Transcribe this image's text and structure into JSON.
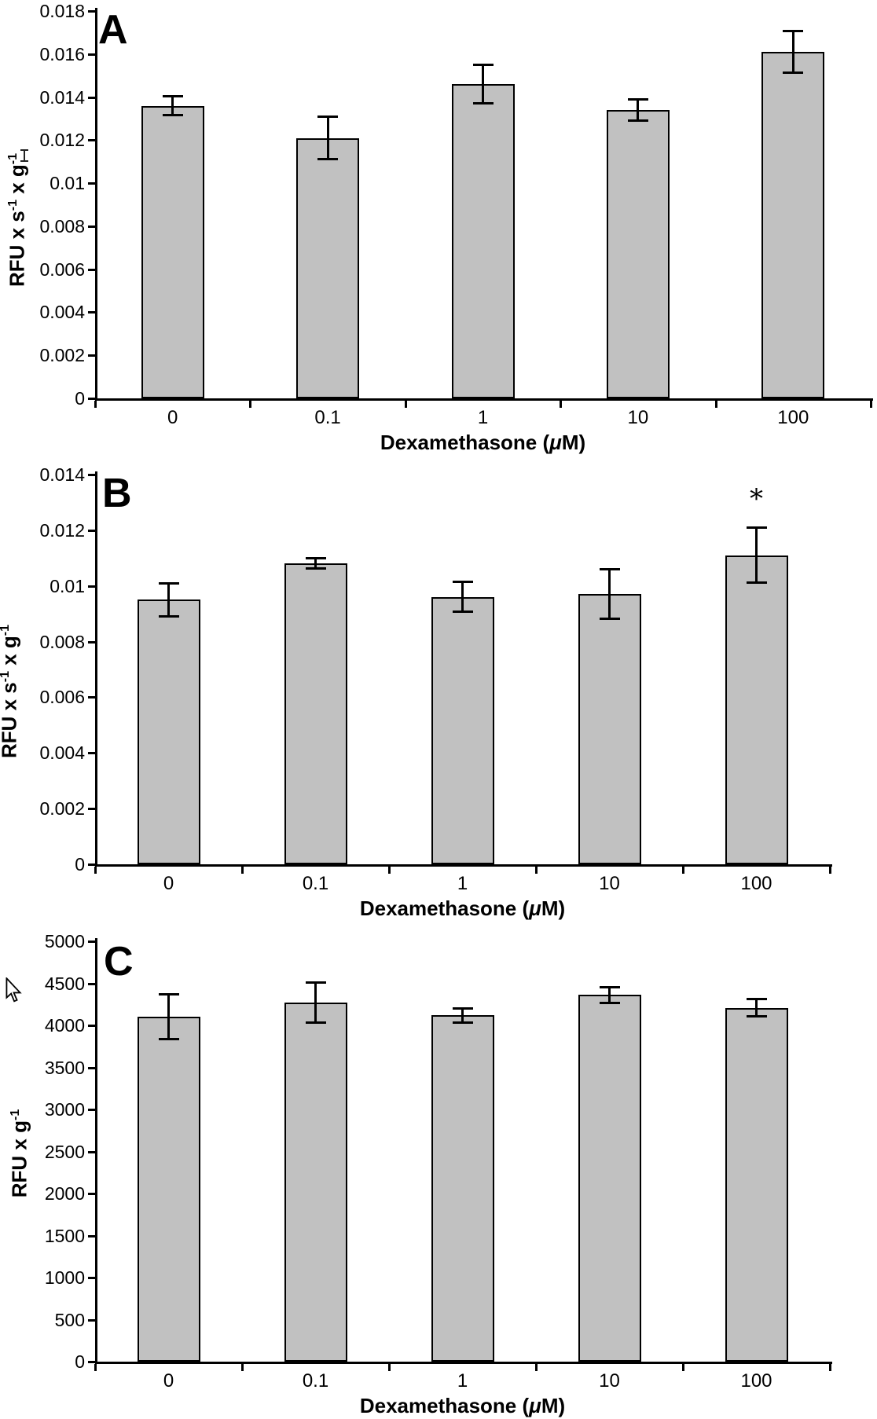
{
  "figure": {
    "background": "#ffffff",
    "bar_fill": "#c1c1c1",
    "bar_border": "#000000",
    "axis_color": "#000000"
  },
  "overlays": {
    "mouse_cursor_icon": "arrow-pointer-cursor",
    "text_cursor_icon": "i-beam-text-cursor"
  },
  "chart_data": [
    {
      "type": "bar",
      "panel_label": "A",
      "ylabel_parts": [
        {
          "text": "RFU x s"
        },
        {
          "text": "-1",
          "sup": true
        },
        {
          "text": " x g"
        },
        {
          "text": "-1",
          "sup": true
        }
      ],
      "xlabel_parts": [
        {
          "text": "Dexamethasone ("
        },
        {
          "text": "μ",
          "italic": true
        },
        {
          "text": "M)"
        }
      ],
      "categories": [
        "0",
        "0.1",
        "1",
        "10",
        "100"
      ],
      "values": [
        0.0136,
        0.0121,
        0.0146,
        0.0134,
        0.0161
      ],
      "errors": [
        0.00045,
        0.001,
        0.0009,
        0.0005,
        0.001
      ],
      "ylim": [
        0,
        0.018
      ],
      "grid": false,
      "yticks": [
        {
          "label": "0.018",
          "value": 0.018
        },
        {
          "label": "0.016",
          "value": 0.016
        },
        {
          "label": "0.014",
          "value": 0.014
        },
        {
          "label": "0.012",
          "value": 0.012
        },
        {
          "label": "0.01",
          "value": 0.01
        },
        {
          "label": "0.008",
          "value": 0.008
        },
        {
          "label": "0.006",
          "value": 0.006
        },
        {
          "label": "0.004",
          "value": 0.004
        },
        {
          "label": "0.002",
          "value": 0.002
        },
        {
          "label": "0",
          "value": 0
        }
      ],
      "annotations": []
    },
    {
      "type": "bar",
      "panel_label": "B",
      "ylabel_parts": [
        {
          "text": "RFU x s"
        },
        {
          "text": "-1",
          "sup": true
        },
        {
          "text": " x g"
        },
        {
          "text": "-1",
          "sup": true
        }
      ],
      "xlabel_parts": [
        {
          "text": "Dexamethasone ("
        },
        {
          "text": "μ",
          "italic": true
        },
        {
          "text": "M)"
        }
      ],
      "categories": [
        "0",
        "0.1",
        "1",
        "10",
        "100"
      ],
      "values": [
        0.0095,
        0.0108,
        0.0096,
        0.0097,
        0.0111
      ],
      "errors": [
        0.0006,
        0.0002,
        0.00055,
        0.0009,
        0.001
      ],
      "ylim": [
        0,
        0.014
      ],
      "grid": false,
      "yticks": [
        {
          "label": "0.014",
          "value": 0.014
        },
        {
          "label": "0.012",
          "value": 0.012
        },
        {
          "label": "0.01",
          "value": 0.01
        },
        {
          "label": "0.008",
          "value": 0.008
        },
        {
          "label": "0.006",
          "value": 0.006
        },
        {
          "label": "0.004",
          "value": 0.004
        },
        {
          "label": "0.002",
          "value": 0.002
        },
        {
          "label": "0",
          "value": 0
        }
      ],
      "annotations": [
        {
          "text": "*",
          "category_index": 4
        }
      ]
    },
    {
      "type": "bar",
      "panel_label": "C",
      "ylabel_parts": [
        {
          "text": "RFU x g"
        },
        {
          "text": "-1",
          "sup": true
        }
      ],
      "xlabel_parts": [
        {
          "text": "Dexamethasone ("
        },
        {
          "text": "μ",
          "italic": true
        },
        {
          "text": "M)"
        }
      ],
      "categories": [
        "0",
        "0.1",
        "1",
        "10",
        "100"
      ],
      "values": [
        4100,
        4270,
        4120,
        4360,
        4210
      ],
      "errors": [
        270,
        240,
        90,
        100,
        105
      ],
      "ylim": [
        0,
        5000
      ],
      "grid": false,
      "yticks": [
        {
          "label": "5000",
          "value": 5000
        },
        {
          "label": "4500",
          "value": 4500
        },
        {
          "label": "4000",
          "value": 4000
        },
        {
          "label": "3500",
          "value": 3500
        },
        {
          "label": "3000",
          "value": 3000
        },
        {
          "label": "2500",
          "value": 2500
        },
        {
          "label": "2000",
          "value": 2000
        },
        {
          "label": "1500",
          "value": 1500
        },
        {
          "label": "1000",
          "value": 1000
        },
        {
          "label": "500",
          "value": 500
        },
        {
          "label": "0",
          "value": 0
        }
      ],
      "annotations": []
    }
  ]
}
